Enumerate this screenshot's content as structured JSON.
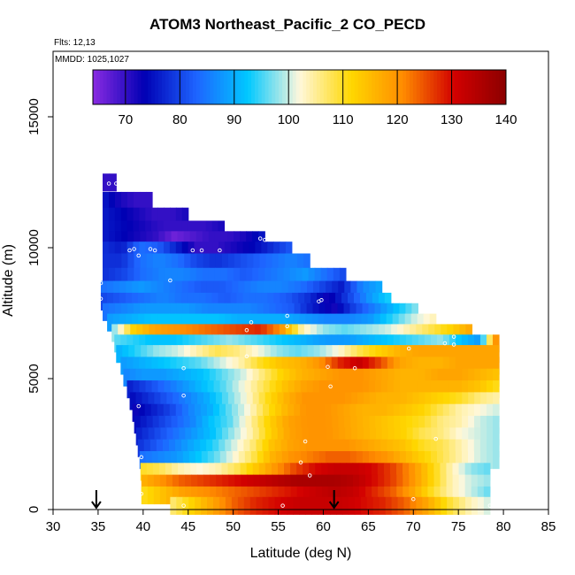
{
  "chart_data": {
    "type": "heatmap",
    "title": "ATOM3 Northeast_Pacific_2 CO_PECD",
    "flights_label": "Flts: 12,13",
    "dates_label": "MMDD: 1025,1027",
    "xlabel": "Latitude (deg N)",
    "ylabel": "Altitude (m)",
    "xlim": [
      30,
      85
    ],
    "ylim": [
      0,
      17500
    ],
    "x_ticks": [
      30,
      35,
      40,
      45,
      50,
      55,
      60,
      65,
      70,
      75,
      80,
      85
    ],
    "y_ticks": [
      0,
      5000,
      10000,
      15000
    ],
    "colorbar": {
      "min": 64,
      "max": 140,
      "ticks": [
        70,
        80,
        90,
        100,
        110,
        120,
        130,
        140
      ],
      "colors": [
        "#8a2be2",
        "#0000b4",
        "#1e64ff",
        "#00c8ff",
        "#fff8dc",
        "#ffd700",
        "#ff8c00",
        "#d20000",
        "#8b0000"
      ]
    },
    "arrows": [
      34.8,
      61.2
    ],
    "layers": [
      {
        "alt": 12500,
        "lat0": 35.5,
        "lat1": 37.0,
        "v": [
          74,
          66,
          74
        ]
      },
      {
        "alt": 11800,
        "lat0": 35.5,
        "lat1": 41.0,
        "v": [
          76,
          72,
          70,
          70
        ]
      },
      {
        "alt": 11200,
        "lat0": 35.5,
        "lat1": 45.0,
        "v": [
          76,
          74,
          72,
          70,
          70,
          72
        ]
      },
      {
        "alt": 10700,
        "lat0": 35.5,
        "lat1": 49.0,
        "v": [
          76,
          74,
          72,
          70,
          70,
          70,
          72
        ]
      },
      {
        "alt": 10300,
        "lat0": 35.5,
        "lat1": 53.5,
        "v": [
          76,
          74,
          72,
          70,
          66,
          68,
          70,
          70,
          72,
          76
        ]
      },
      {
        "alt": 9900,
        "lat0": 35.5,
        "lat1": 56.5,
        "v": [
          78,
          76,
          84,
          82,
          76,
          70,
          70,
          72,
          74,
          78,
          82
        ]
      },
      {
        "alt": 9450,
        "lat0": 35.5,
        "lat1": 58.5,
        "v": [
          78,
          78,
          84,
          86,
          84,
          80,
          78,
          80,
          82,
          84,
          86,
          84
        ]
      },
      {
        "alt": 8900,
        "lat0": 35.5,
        "lat1": 62.5,
        "v": [
          78,
          80,
          84,
          86,
          86,
          84,
          84,
          82,
          84,
          86,
          88,
          84,
          80
        ]
      },
      {
        "alt": 8400,
        "lat0": 35.3,
        "lat1": 66.5,
        "v": [
          84,
          86,
          88,
          86,
          84,
          82,
          82,
          84,
          86,
          86,
          84,
          80,
          76,
          86,
          90
        ]
      },
      {
        "alt": 7950,
        "lat0": 35.3,
        "lat1": 67.5,
        "v": [
          80,
          82,
          84,
          86,
          84,
          84,
          82,
          84,
          84,
          82,
          78,
          72,
          80,
          88,
          94
        ]
      },
      {
        "alt": 7550,
        "lat0": 35.5,
        "lat1": 70.5,
        "v": [
          84,
          86,
          88,
          88,
          88,
          86,
          86,
          86,
          84,
          82,
          76,
          72,
          80,
          86,
          92,
          98
        ]
      },
      {
        "alt": 7150,
        "lat0": 36.0,
        "lat1": 72.5,
        "v": [
          88,
          90,
          92,
          92,
          92,
          92,
          90,
          90,
          90,
          88,
          86,
          86,
          88,
          94,
          100,
          104
        ]
      },
      {
        "alt": 6750,
        "lat0": 36.5,
        "lat1": 76.5,
        "v": [
          96,
          112,
          118,
          120,
          122,
          124,
          126,
          128,
          120,
          104,
          98,
          96,
          98,
          100,
          104,
          108,
          112,
          118
        ]
      },
      {
        "alt": 6350,
        "lat0": 36.8,
        "lat1": 79.5,
        "v": [
          96,
          94,
          92,
          92,
          94,
          96,
          98,
          96,
          94,
          92,
          90,
          88,
          88,
          90,
          92,
          94,
          96,
          98,
          92,
          88,
          126
        ]
      },
      {
        "alt": 5950,
        "lat0": 37.0,
        "lat1": 79.5,
        "v": [
          90,
          94,
          98,
          100,
          104,
          108,
          106,
          102,
          98,
          96,
          98,
          102,
          108,
          112,
          116,
          118,
          118,
          118,
          118,
          118
        ]
      },
      {
        "alt": 5500,
        "lat0": 37.5,
        "lat1": 79.5,
        "v": [
          88,
          90,
          92,
          94,
          96,
          100,
          104,
          110,
          114,
          116,
          120,
          128,
          132,
          126,
          118,
          116,
          116,
          118,
          118,
          118
        ]
      },
      {
        "alt": 5050,
        "lat0": 37.8,
        "lat1": 79.5,
        "v": [
          86,
          88,
          88,
          90,
          92,
          96,
          100,
          106,
          112,
          116,
          118,
          120,
          120,
          118,
          116,
          116,
          118,
          118,
          116,
          114
        ]
      },
      {
        "alt": 4600,
        "lat0": 38.2,
        "lat1": 79.5,
        "v": [
          76,
          80,
          84,
          88,
          92,
          96,
          102,
          108,
          114,
          118,
          120,
          120,
          120,
          118,
          116,
          116,
          116,
          116,
          114,
          110
        ]
      },
      {
        "alt": 4150,
        "lat0": 38.5,
        "lat1": 79.5,
        "v": [
          74,
          78,
          82,
          86,
          90,
          96,
          102,
          110,
          116,
          120,
          120,
          120,
          118,
          116,
          116,
          114,
          112,
          110,
          106,
          104
        ]
      },
      {
        "alt": 3700,
        "lat0": 38.8,
        "lat1": 79.5,
        "v": [
          72,
          76,
          80,
          86,
          90,
          96,
          102,
          110,
          116,
          120,
          120,
          118,
          116,
          116,
          114,
          112,
          108,
          104,
          102,
          100
        ]
      },
      {
        "alt": 3250,
        "lat0": 39.0,
        "lat1": 79.5,
        "v": [
          74,
          78,
          82,
          86,
          92,
          96,
          104,
          112,
          118,
          120,
          120,
          118,
          116,
          114,
          112,
          110,
          106,
          104,
          100,
          98
        ]
      },
      {
        "alt": 2800,
        "lat0": 39.2,
        "lat1": 79.5,
        "v": [
          76,
          80,
          84,
          88,
          92,
          98,
          104,
          112,
          118,
          120,
          120,
          118,
          116,
          114,
          112,
          108,
          106,
          102,
          100,
          98
        ]
      },
      {
        "alt": 2350,
        "lat0": 39.4,
        "lat1": 79.5,
        "v": [
          78,
          82,
          86,
          90,
          94,
          100,
          106,
          114,
          118,
          120,
          120,
          120,
          118,
          116,
          114,
          110,
          108,
          104,
          100,
          98
        ]
      },
      {
        "alt": 1900,
        "lat0": 39.6,
        "lat1": 79.5,
        "v": [
          84,
          86,
          88,
          92,
          96,
          102,
          108,
          116,
          120,
          122,
          124,
          124,
          122,
          120,
          116,
          112,
          108,
          104,
          100,
          98
        ]
      },
      {
        "alt": 1450,
        "lat0": 39.7,
        "lat1": 78.5,
        "v": [
          110,
          108,
          104,
          102,
          104,
          108,
          114,
          120,
          126,
          130,
          132,
          132,
          130,
          126,
          120,
          112,
          104,
          98,
          96
        ]
      },
      {
        "alt": 1000,
        "lat0": 39.8,
        "lat1": 78.5,
        "v": [
          116,
          120,
          124,
          126,
          128,
          130,
          132,
          134,
          136,
          136,
          136,
          134,
          130,
          126,
          120,
          112,
          104,
          100,
          98
        ]
      },
      {
        "alt": 550,
        "lat0": 39.8,
        "lat1": 78.5,
        "v": [
          110,
          114,
          118,
          120,
          122,
          124,
          126,
          128,
          130,
          132,
          134,
          132,
          128,
          124,
          118,
          110,
          104,
          100,
          96
        ]
      },
      {
        "alt": 150,
        "lat0": 43.0,
        "lat1": 78.5,
        "v": [
          106,
          112,
          118,
          124,
          128,
          130,
          132,
          132,
          132,
          130,
          128,
          124,
          118,
          110,
          104,
          100
        ]
      }
    ],
    "points": [
      [
        36.2,
        12450
      ],
      [
        37.0,
        12450
      ],
      [
        38.5,
        9900
      ],
      [
        39.0,
        9950
      ],
      [
        39.5,
        9700
      ],
      [
        40.8,
        9950
      ],
      [
        41.3,
        9900
      ],
      [
        43.0,
        8750
      ],
      [
        45.5,
        9900
      ],
      [
        46.5,
        9900
      ],
      [
        48.5,
        9900
      ],
      [
        53.0,
        10350
      ],
      [
        53.5,
        10300
      ],
      [
        35.3,
        8650
      ],
      [
        35.3,
        8050
      ],
      [
        59.5,
        7950
      ],
      [
        59.8,
        8000
      ],
      [
        56.0,
        7400
      ],
      [
        56.0,
        7000
      ],
      [
        52.0,
        7150
      ],
      [
        51.5,
        5850
      ],
      [
        51.5,
        6850
      ],
      [
        44.5,
        5400
      ],
      [
        44.5,
        4350
      ],
      [
        39.5,
        3950
      ],
      [
        60.5,
        5450
      ],
      [
        60.8,
        4700
      ],
      [
        63.5,
        5400
      ],
      [
        58.0,
        2600
      ],
      [
        57.5,
        1800
      ],
      [
        58.5,
        1300
      ],
      [
        39.8,
        2000
      ],
      [
        39.8,
        600
      ],
      [
        72.5,
        2700
      ],
      [
        73.5,
        6350
      ],
      [
        74.5,
        6300
      ],
      [
        74.5,
        6600
      ],
      [
        69.5,
        6150
      ],
      [
        55.5,
        150
      ],
      [
        44.5,
        150
      ],
      [
        70.0,
        400
      ],
      [
        78.5,
        150
      ]
    ]
  }
}
